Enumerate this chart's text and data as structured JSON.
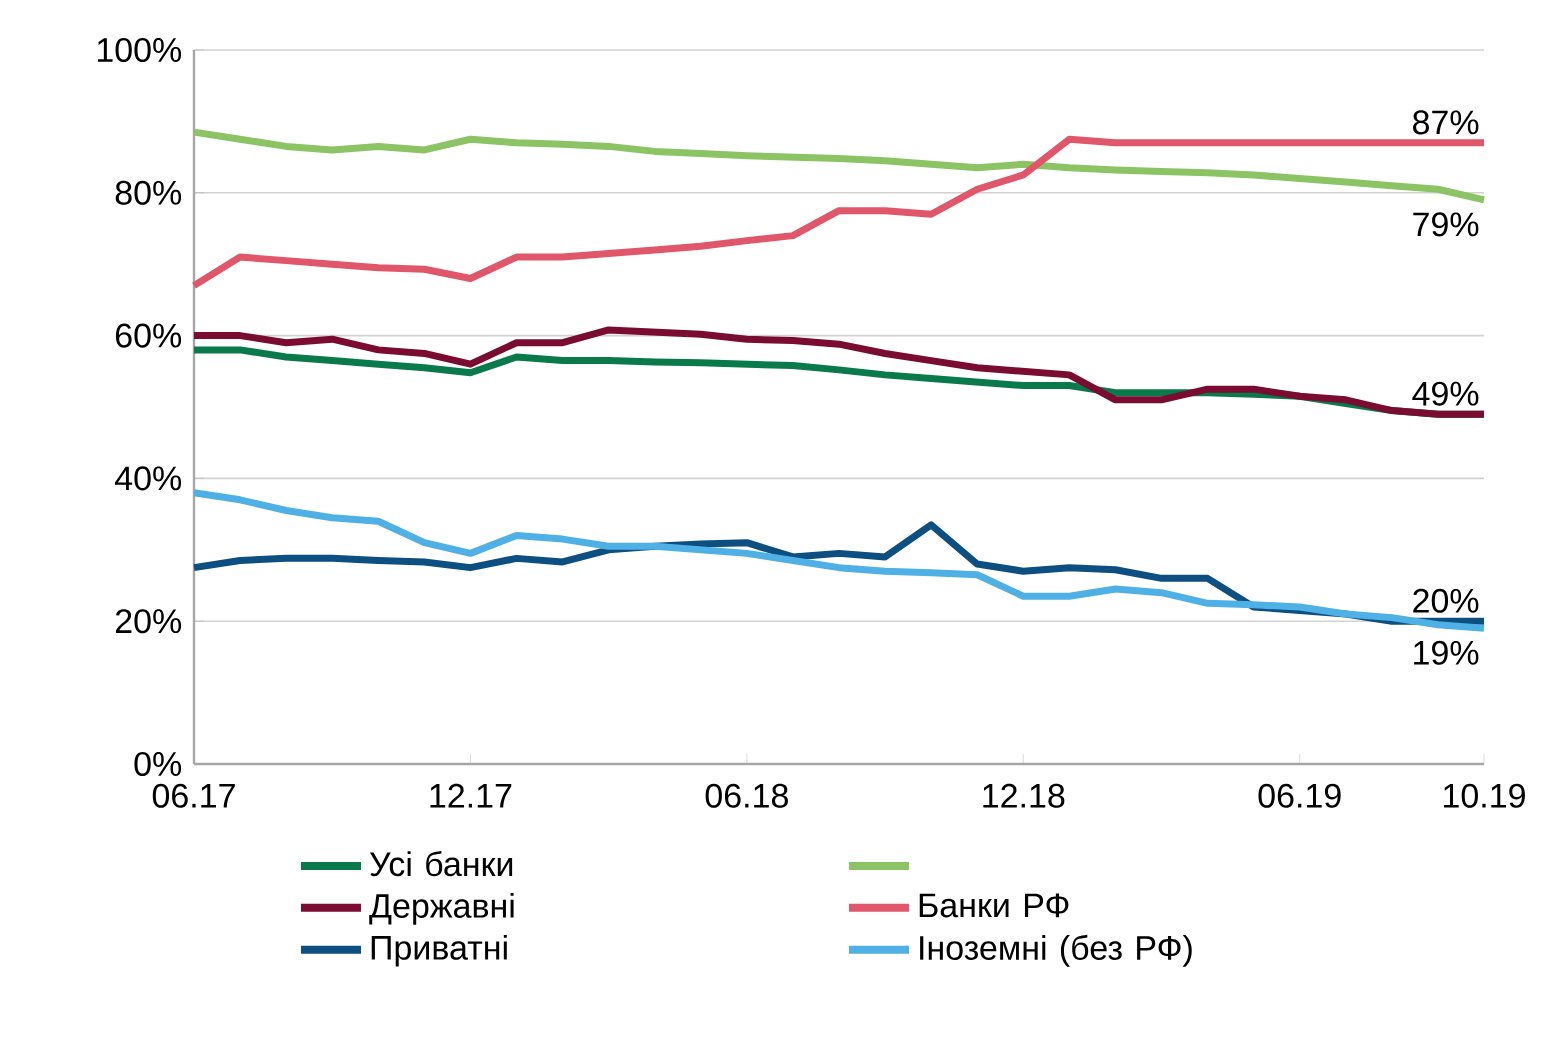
{
  "chart_data": {
    "type": "line",
    "x": [
      "2017-06",
      "2017-07",
      "2017-08",
      "2017-09",
      "2017-10",
      "2017-11",
      "2017-12",
      "2018-01",
      "2018-02",
      "2018-03",
      "2018-04",
      "2018-05",
      "2018-06",
      "2018-07",
      "2018-08",
      "2018-09",
      "2018-10",
      "2018-11",
      "2018-12",
      "2019-01",
      "2019-02",
      "2019-03",
      "2019-04",
      "2019-05",
      "2019-06",
      "2019-07",
      "2019-08",
      "2019-09",
      "2019-10"
    ],
    "series": [
      {
        "name": "Усі банки",
        "color": "#0a7a4c",
        "values": [
          58,
          58,
          57,
          56.5,
          56,
          55.5,
          54.8,
          57,
          56.5,
          56.5,
          56.3,
          56.2,
          56,
          55.8,
          55.2,
          54.5,
          54,
          53.5,
          53,
          53,
          52,
          52,
          52,
          51.8,
          51.5,
          50.5,
          49.5,
          49,
          49
        ]
      },
      {
        "color": "#8cc465",
        "values": [
          88.5,
          87.5,
          86.5,
          86,
          86.5,
          86,
          87.5,
          87,
          86.8,
          86.5,
          85.8,
          85.5,
          85.2,
          85,
          84.8,
          84.5,
          84,
          83.5,
          84,
          83.5,
          83.2,
          83,
          82.8,
          82.5,
          82,
          81.5,
          81,
          80.5,
          79
        ]
      },
      {
        "name": "Державні",
        "color": "#7a0c32",
        "values": [
          60,
          60,
          59,
          59.5,
          58,
          57.5,
          56,
          59,
          59,
          60.8,
          60.5,
          60.2,
          59.5,
          59.3,
          58.8,
          57.5,
          56.5,
          55.5,
          55,
          54.5,
          51,
          51,
          52.5,
          52.5,
          51.5,
          51,
          49.5,
          49,
          49
        ]
      },
      {
        "name": "Банки РФ",
        "color": "#e0566a",
        "values": [
          67,
          71,
          70.5,
          70,
          69.5,
          69.3,
          68,
          71,
          71,
          71.5,
          72,
          72.5,
          73.3,
          74,
          77.5,
          77.5,
          77,
          80.5,
          82.5,
          87.5,
          87,
          87,
          87,
          87,
          87,
          87,
          87,
          87,
          87
        ]
      },
      {
        "name": "Приватні",
        "color": "#0c4f80",
        "values": [
          27.5,
          28.5,
          28.8,
          28.8,
          28.5,
          28.3,
          27.5,
          28.8,
          28.3,
          30,
          30.5,
          30.8,
          31,
          29,
          29.5,
          29,
          33.5,
          28,
          27,
          27.5,
          27.2,
          26,
          26,
          22,
          21.5,
          21,
          20,
          20,
          20
        ]
      },
      {
        "name": "Іноземні (без РФ)",
        "color": "#4fb0e5",
        "values": [
          38,
          37,
          35.5,
          34.5,
          34,
          31,
          29.5,
          32,
          31.5,
          30.5,
          30.5,
          30,
          29.5,
          28.5,
          27.5,
          27,
          26.8,
          26.5,
          23.5,
          23.5,
          24.5,
          24,
          22.5,
          22.3,
          22,
          21,
          20.5,
          19.5,
          19
        ]
      }
    ],
    "xlim": [
      "2017-06",
      "2019-10"
    ],
    "xticks": [
      {
        "value": "2017-06",
        "label": "06.17"
      },
      {
        "value": "2017-12",
        "label": "12.17"
      },
      {
        "value": "2018-06",
        "label": "06.18"
      },
      {
        "value": "2018-12",
        "label": "12.18"
      },
      {
        "value": "2019-06",
        "label": "06.19"
      },
      {
        "value": "2019-10",
        "label": "10.19"
      }
    ],
    "ylim": [
      0,
      100
    ],
    "yticks": [
      {
        "value": 0,
        "label": "0%"
      },
      {
        "value": 20,
        "label": "20%"
      },
      {
        "value": 40,
        "label": "40%"
      },
      {
        "value": 60,
        "label": "60%"
      },
      {
        "value": 80,
        "label": "80%"
      },
      {
        "value": 100,
        "label": "100%"
      }
    ],
    "grid": "y",
    "legend": "bottom",
    "annotations": [
      {
        "text": "87%",
        "x": "2019-10",
        "y": 87
      },
      {
        "text": "79%",
        "x": "2019-10",
        "y": 79
      },
      {
        "text": "49%",
        "x": "2019-10",
        "y": 49
      },
      {
        "text": "20%",
        "x": "2019-10",
        "y": 20
      },
      {
        "text": "19%",
        "x": "2019-10",
        "y": 19
      }
    ]
  }
}
